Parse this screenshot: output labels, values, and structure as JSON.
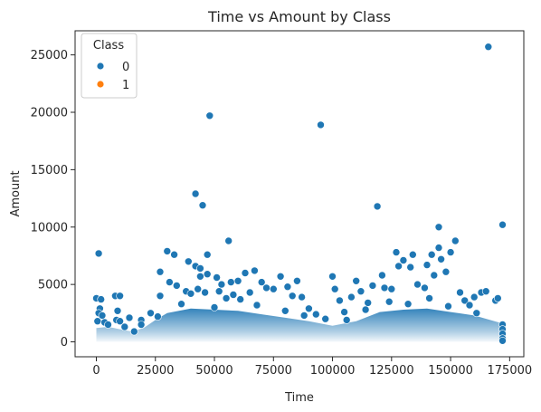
{
  "chart_data": {
    "type": "scatter",
    "title": "Time vs Amount by Class",
    "xlabel": "Time",
    "ylabel": "Amount",
    "xlim": [
      -9000,
      181000
    ],
    "ylim": [
      -1300,
      27100
    ],
    "x_ticks": [
      0,
      25000,
      50000,
      75000,
      100000,
      125000,
      150000,
      175000
    ],
    "y_ticks": [
      0,
      5000,
      10000,
      15000,
      20000,
      25000
    ],
    "grid": false,
    "legend": {
      "title": "Class",
      "placement": "top-left",
      "entries": [
        {
          "label": "0",
          "color": "#1f77b4"
        },
        {
          "label": "1",
          "color": "#ff7f0e"
        }
      ]
    },
    "series": [
      {
        "name": "0",
        "color": "#1f77b4",
        "points": [
          [
            1000,
            7700
          ],
          [
            0,
            3800
          ],
          [
            2000,
            3700
          ],
          [
            1500,
            2900
          ],
          [
            1000,
            2500
          ],
          [
            2500,
            2300
          ],
          [
            500,
            1800
          ],
          [
            3500,
            1700
          ],
          [
            5000,
            1500
          ],
          [
            8000,
            4000
          ],
          [
            10000,
            4000
          ],
          [
            9000,
            2700
          ],
          [
            8500,
            1900
          ],
          [
            10000,
            1800
          ],
          [
            12000,
            1300
          ],
          [
            14000,
            2100
          ],
          [
            19000,
            1900
          ],
          [
            19000,
            1500
          ],
          [
            16000,
            900
          ],
          [
            27000,
            6100
          ],
          [
            30000,
            7900
          ],
          [
            31000,
            5200
          ],
          [
            27000,
            4000
          ],
          [
            33000,
            7600
          ],
          [
            34000,
            4900
          ],
          [
            39000,
            7000
          ],
          [
            42000,
            12900
          ],
          [
            45000,
            11900
          ],
          [
            47000,
            7600
          ],
          [
            48000,
            19700
          ],
          [
            42000,
            6600
          ],
          [
            44000,
            6400
          ],
          [
            44000,
            5700
          ],
          [
            47000,
            5900
          ],
          [
            51000,
            5600
          ],
          [
            53000,
            5000
          ],
          [
            56000,
            8800
          ],
          [
            57000,
            5200
          ],
          [
            60000,
            5300
          ],
          [
            63000,
            6000
          ],
          [
            38000,
            4400
          ],
          [
            40000,
            4200
          ],
          [
            43000,
            4600
          ],
          [
            46000,
            4300
          ],
          [
            52000,
            4400
          ],
          [
            55000,
            3800
          ],
          [
            58000,
            4100
          ],
          [
            61000,
            3700
          ],
          [
            65000,
            4300
          ],
          [
            67000,
            6200
          ],
          [
            70000,
            5200
          ],
          [
            72000,
            4700
          ],
          [
            75000,
            4600
          ],
          [
            78000,
            5700
          ],
          [
            81000,
            4800
          ],
          [
            83000,
            4000
          ],
          [
            85000,
            5300
          ],
          [
            87000,
            3900
          ],
          [
            90000,
            2900
          ],
          [
            93000,
            2400
          ],
          [
            95000,
            18900
          ],
          [
            100000,
            5700
          ],
          [
            101000,
            4600
          ],
          [
            103000,
            3600
          ],
          [
            105000,
            2600
          ],
          [
            108000,
            3900
          ],
          [
            110000,
            5300
          ],
          [
            112000,
            4400
          ],
          [
            115000,
            3400
          ],
          [
            117000,
            4900
          ],
          [
            119000,
            11800
          ],
          [
            121000,
            5800
          ],
          [
            122000,
            4700
          ],
          [
            125000,
            4600
          ],
          [
            127000,
            7800
          ],
          [
            128000,
            6600
          ],
          [
            130000,
            7100
          ],
          [
            133000,
            6500
          ],
          [
            134000,
            7600
          ],
          [
            136000,
            5000
          ],
          [
            139000,
            4700
          ],
          [
            140000,
            6700
          ],
          [
            142000,
            7600
          ],
          [
            143000,
            5800
          ],
          [
            145000,
            10000
          ],
          [
            145000,
            8200
          ],
          [
            146000,
            7200
          ],
          [
            148000,
            6100
          ],
          [
            150000,
            7800
          ],
          [
            152000,
            8800
          ],
          [
            154000,
            4300
          ],
          [
            156000,
            3600
          ],
          [
            158000,
            3200
          ],
          [
            160000,
            3900
          ],
          [
            163000,
            4300
          ],
          [
            165000,
            4400
          ],
          [
            166000,
            25700
          ],
          [
            169000,
            3600
          ],
          [
            170000,
            3800
          ],
          [
            172000,
            10200
          ],
          [
            172000,
            1500
          ],
          [
            172000,
            1100
          ],
          [
            172000,
            700
          ],
          [
            172000,
            300
          ],
          [
            172000,
            100
          ],
          [
            23000,
            2500
          ],
          [
            26000,
            2200
          ],
          [
            36000,
            3300
          ],
          [
            50000,
            3000
          ],
          [
            68000,
            3200
          ],
          [
            80000,
            2700
          ],
          [
            88000,
            2300
          ],
          [
            97000,
            2000
          ],
          [
            106000,
            1900
          ],
          [
            114000,
            2800
          ],
          [
            124000,
            3500
          ],
          [
            132000,
            3300
          ],
          [
            141000,
            3800
          ],
          [
            149000,
            3100
          ],
          [
            161000,
            2500
          ]
        ]
      },
      {
        "name": "1",
        "color": "#ff7f0e",
        "points": []
      }
    ]
  }
}
